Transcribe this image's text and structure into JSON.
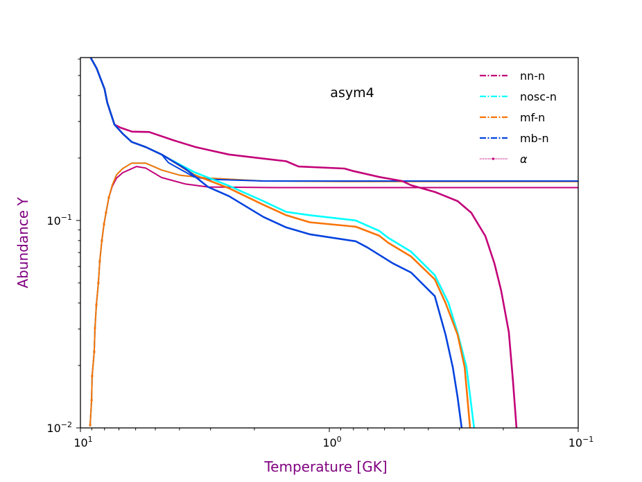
{
  "chart_data": {
    "type": "line",
    "title": "",
    "annotation": "asym4",
    "xlabel": "Temperature [GK]",
    "ylabel": "Abundance Y",
    "label_color": "#800080",
    "xscale": "log",
    "yscale": "log",
    "xlim": [
      10,
      0.1
    ],
    "x_reversed": true,
    "ylim": [
      0.01,
      0.61
    ],
    "grid": false,
    "legend_position": "top-right",
    "x_ticks": [
      {
        "value": 10,
        "base": "10",
        "exp": "1"
      },
      {
        "value": 1,
        "base": "10",
        "exp": "0"
      },
      {
        "value": 0.1,
        "base": "10",
        "exp": "−1"
      }
    ],
    "y_ticks": [
      {
        "value": 0.1,
        "base": "10",
        "exp": "−1"
      },
      {
        "value": 0.01,
        "base": "10",
        "exp": "−2"
      }
    ],
    "series": [
      {
        "name": "nn-n",
        "color": "#c20078",
        "style": "dashdot",
        "points": [
          [
            9.1,
            0.61
          ],
          [
            8.6,
            0.54
          ],
          [
            8.0,
            0.43
          ],
          [
            7.8,
            0.37
          ],
          [
            7.5,
            0.32
          ],
          [
            7.3,
            0.29
          ],
          [
            6.9,
            0.28
          ],
          [
            6.2,
            0.268
          ],
          [
            5.3,
            0.267
          ],
          [
            4.2,
            0.243
          ],
          [
            3.45,
            0.226
          ],
          [
            3.07,
            0.219
          ],
          [
            2.53,
            0.208
          ],
          [
            1.49,
            0.193
          ],
          [
            1.33,
            0.182
          ],
          [
            0.87,
            0.178
          ],
          [
            0.8,
            0.173
          ],
          [
            0.63,
            0.162
          ],
          [
            0.51,
            0.155
          ],
          [
            0.47,
            0.148
          ],
          [
            0.375,
            0.137
          ],
          [
            0.305,
            0.124
          ],
          [
            0.269,
            0.109
          ],
          [
            0.236,
            0.084
          ],
          [
            0.217,
            0.062
          ],
          [
            0.204,
            0.046
          ],
          [
            0.19,
            0.029
          ],
          [
            0.183,
            0.017
          ],
          [
            0.177,
            0.01
          ]
        ]
      },
      {
        "name": "nosc-n",
        "color": "#00ffff",
        "style": "dashdot",
        "points": [
          [
            9.1,
            0.61
          ],
          [
            8.6,
            0.54
          ],
          [
            8.0,
            0.43
          ],
          [
            7.8,
            0.37
          ],
          [
            7.5,
            0.32
          ],
          [
            7.3,
            0.29
          ],
          [
            6.76,
            0.262
          ],
          [
            6.22,
            0.239
          ],
          [
            5.47,
            0.226
          ],
          [
            4.72,
            0.208
          ],
          [
            4.43,
            0.199
          ],
          [
            3.49,
            0.171
          ],
          [
            2.53,
            0.147
          ],
          [
            1.84,
            0.124
          ],
          [
            1.49,
            0.11
          ],
          [
            1.2,
            0.106
          ],
          [
            0.783,
            0.1
          ],
          [
            0.63,
            0.0891
          ],
          [
            0.58,
            0.0825
          ],
          [
            0.469,
            0.0707
          ],
          [
            0.377,
            0.0545
          ],
          [
            0.332,
            0.04
          ],
          [
            0.305,
            0.0287
          ],
          [
            0.281,
            0.0196
          ],
          [
            0.262,
            0.01
          ]
        ]
      },
      {
        "name": "mf-n",
        "color": "#f97306",
        "style": "dashdot",
        "points": [
          [
            9.1,
            0.61
          ],
          [
            8.6,
            0.54
          ],
          [
            8.0,
            0.43
          ],
          [
            7.8,
            0.37
          ],
          [
            7.5,
            0.32
          ],
          [
            7.3,
            0.29
          ],
          [
            6.76,
            0.262
          ],
          [
            6.22,
            0.239
          ],
          [
            5.47,
            0.226
          ],
          [
            4.72,
            0.208
          ],
          [
            4.43,
            0.199
          ],
          [
            3.49,
            0.166
          ],
          [
            2.53,
            0.143
          ],
          [
            1.84,
            0.119
          ],
          [
            1.49,
            0.106
          ],
          [
            1.2,
            0.098
          ],
          [
            0.783,
            0.0933
          ],
          [
            0.63,
            0.0844
          ],
          [
            0.58,
            0.0781
          ],
          [
            0.469,
            0.067
          ],
          [
            0.377,
            0.052
          ],
          [
            0.341,
            0.04
          ],
          [
            0.305,
            0.0281
          ],
          [
            0.286,
            0.0196
          ],
          [
            0.272,
            0.01
          ]
        ]
      },
      {
        "name": "mb-n",
        "color": "#0343df",
        "style": "dashdot",
        "points": [
          [
            9.1,
            0.61
          ],
          [
            8.6,
            0.54
          ],
          [
            8.0,
            0.43
          ],
          [
            7.8,
            0.37
          ],
          [
            7.5,
            0.32
          ],
          [
            7.3,
            0.29
          ],
          [
            6.76,
            0.262
          ],
          [
            6.22,
            0.239
          ],
          [
            5.47,
            0.226
          ],
          [
            4.72,
            0.208
          ],
          [
            3.8,
            0.178
          ],
          [
            3.07,
            0.145
          ],
          [
            2.53,
            0.131
          ],
          [
            1.84,
            0.104
          ],
          [
            1.49,
            0.0926
          ],
          [
            1.2,
            0.0858
          ],
          [
            0.783,
            0.0794
          ],
          [
            0.703,
            0.0741
          ],
          [
            0.555,
            0.0621
          ],
          [
            0.469,
            0.0561
          ],
          [
            0.377,
            0.0432
          ],
          [
            0.341,
            0.0281
          ],
          [
            0.319,
            0.0196
          ],
          [
            0.305,
            0.014
          ],
          [
            0.294,
            0.01
          ]
        ]
      },
      {
        "name": "α",
        "color": "#c20078",
        "style": "dotted",
        "points": [
          [
            9.14,
            0.0103
          ],
          [
            9.02,
            0.0136
          ],
          [
            8.97,
            0.0178
          ],
          [
            8.8,
            0.0233
          ],
          [
            8.74,
            0.0303
          ],
          [
            8.63,
            0.0391
          ],
          [
            8.47,
            0.05
          ],
          [
            8.36,
            0.0635
          ],
          [
            8.2,
            0.08
          ],
          [
            8.04,
            0.096
          ],
          [
            7.89,
            0.109
          ],
          [
            7.69,
            0.129
          ],
          [
            7.45,
            0.146
          ],
          [
            7.16,
            0.16
          ],
          [
            6.76,
            0.17
          ],
          [
            5.95,
            0.182
          ],
          [
            5.47,
            0.179
          ],
          [
            4.72,
            0.161
          ],
          [
            3.8,
            0.15
          ],
          [
            3.07,
            0.145
          ],
          [
            1.62,
            0.144
          ],
          [
            0.1,
            0.144
          ]
        ]
      },
      {
        "color": "#00ffff",
        "style": "dotted",
        "points": [
          [
            9.14,
            0.0103
          ],
          [
            9.02,
            0.0136
          ],
          [
            8.97,
            0.0178
          ],
          [
            8.8,
            0.0233
          ],
          [
            8.74,
            0.0303
          ],
          [
            8.63,
            0.0391
          ],
          [
            8.47,
            0.05
          ],
          [
            8.36,
            0.0635
          ],
          [
            8.2,
            0.08
          ],
          [
            8.04,
            0.096
          ],
          [
            7.89,
            0.109
          ],
          [
            7.69,
            0.129
          ],
          [
            7.45,
            0.148
          ],
          [
            7.16,
            0.166
          ],
          [
            6.76,
            0.178
          ],
          [
            6.22,
            0.189
          ],
          [
            5.47,
            0.189
          ],
          [
            4.72,
            0.175
          ],
          [
            3.97,
            0.165
          ],
          [
            3.07,
            0.16
          ],
          [
            1.84,
            0.155
          ],
          [
            0.852,
            0.154
          ],
          [
            0.1,
            0.154
          ]
        ]
      },
      {
        "color": "#f97306",
        "style": "dotted",
        "points": [
          [
            9.14,
            0.0103
          ],
          [
            9.02,
            0.0136
          ],
          [
            8.97,
            0.0178
          ],
          [
            8.8,
            0.0233
          ],
          [
            8.74,
            0.0303
          ],
          [
            8.63,
            0.0391
          ],
          [
            8.47,
            0.05
          ],
          [
            8.36,
            0.0635
          ],
          [
            8.2,
            0.08
          ],
          [
            8.04,
            0.096
          ],
          [
            7.89,
            0.109
          ],
          [
            7.69,
            0.129
          ],
          [
            7.45,
            0.148
          ],
          [
            7.16,
            0.166
          ],
          [
            6.76,
            0.178
          ],
          [
            6.22,
            0.189
          ],
          [
            5.47,
            0.189
          ],
          [
            4.72,
            0.175
          ],
          [
            3.97,
            0.165
          ],
          [
            3.07,
            0.16
          ],
          [
            1.84,
            0.155
          ],
          [
            0.852,
            0.154
          ],
          [
            0.1,
            0.154
          ]
        ]
      },
      {
        "color": "#0343df",
        "style": "dotted",
        "points": [
          [
            6.22,
            0.239
          ],
          [
            5.47,
            0.226
          ],
          [
            4.72,
            0.208
          ],
          [
            4.43,
            0.19
          ],
          [
            3.49,
            0.162
          ],
          [
            3.07,
            0.158
          ],
          [
            1.84,
            0.155
          ],
          [
            0.852,
            0.155
          ],
          [
            0.1,
            0.155
          ]
        ]
      }
    ]
  }
}
